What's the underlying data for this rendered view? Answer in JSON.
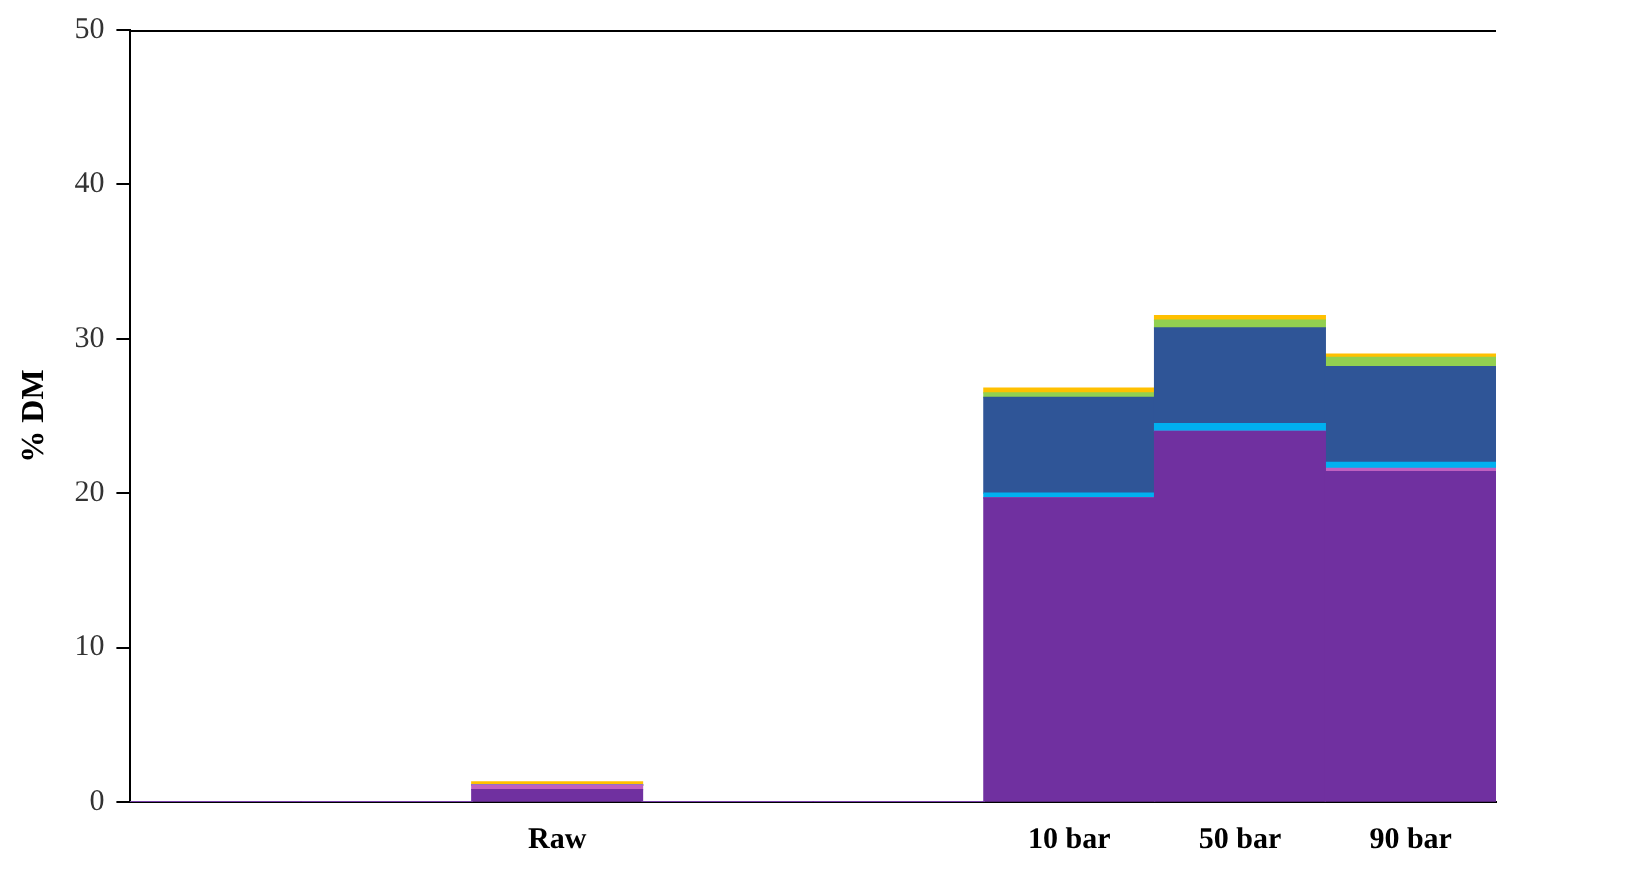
{
  "chart_data": {
    "type": "bar",
    "ylabel": "% DM",
    "stacked": true,
    "categories": [
      null,
      null,
      "Raw",
      null,
      null,
      "10 bar",
      "50 bar",
      "90 bar"
    ],
    "series": [
      {
        "color": "#7030a0",
        "values": [
          0,
          0,
          0.8,
          0,
          0,
          19.7,
          24.0,
          21.4
        ]
      },
      {
        "color": "#c060c0",
        "values": [
          0,
          0,
          0.3,
          0,
          0,
          0,
          0,
          0.2
        ]
      },
      {
        "color": "#00b0f0",
        "values": [
          0,
          0,
          0,
          0,
          0,
          0.3,
          0.5,
          0.4
        ]
      },
      {
        "color": "#2f5597",
        "values": [
          0,
          0,
          0,
          0,
          0,
          6.2,
          6.2,
          6.2
        ]
      },
      {
        "color": "#92d050",
        "values": [
          0,
          0,
          0,
          0,
          0,
          0.3,
          0.5,
          0.6
        ]
      },
      {
        "color": "#ffc000",
        "values": [
          0,
          0,
          0.2,
          0,
          0,
          0.3,
          0.3,
          0.2
        ]
      }
    ],
    "ylim": [
      0,
      50
    ],
    "yticks": [
      0,
      10,
      20,
      30,
      40,
      50
    ],
    "grid": false,
    "legend": false
  }
}
